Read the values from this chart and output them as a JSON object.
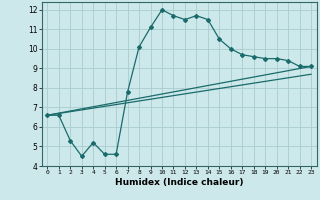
{
  "title": "",
  "xlabel": "Humidex (Indice chaleur)",
  "bg_color": "#cce8eb",
  "grid_color": "#aacccc",
  "line_color": "#1a6b6b",
  "xlim": [
    -0.5,
    23.5
  ],
  "ylim": [
    4,
    12.4
  ],
  "xticks": [
    0,
    1,
    2,
    3,
    4,
    5,
    6,
    7,
    8,
    9,
    10,
    11,
    12,
    13,
    14,
    15,
    16,
    17,
    18,
    19,
    20,
    21,
    22,
    23
  ],
  "yticks": [
    4,
    5,
    6,
    7,
    8,
    9,
    10,
    11,
    12
  ],
  "line1_x": [
    0,
    1,
    2,
    3,
    4,
    5,
    6,
    7,
    8,
    9,
    10,
    11,
    12,
    13,
    14,
    15,
    16,
    17,
    18,
    19,
    20,
    21,
    22,
    23
  ],
  "line1_y": [
    6.6,
    6.6,
    5.3,
    4.5,
    5.2,
    4.6,
    4.6,
    7.8,
    10.1,
    11.1,
    12.0,
    11.7,
    11.5,
    11.7,
    11.5,
    10.5,
    10.0,
    9.7,
    9.6,
    9.5,
    9.5,
    9.4,
    9.1,
    9.1
  ],
  "line2_x": [
    0,
    23
  ],
  "line2_y": [
    6.6,
    9.1
  ],
  "line3_x": [
    0,
    23
  ],
  "line3_y": [
    6.6,
    8.7
  ]
}
